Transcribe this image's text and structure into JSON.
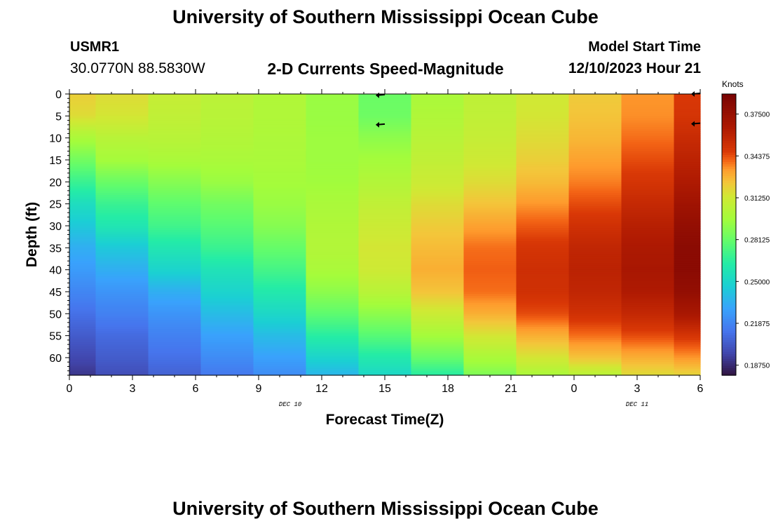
{
  "header": {
    "title": "University of Southern Mississippi Ocean Cube",
    "station_id": "USMR1",
    "coords": "30.0770N  88.5830W",
    "subtitle": "2-D Currents Speed-Magnitude",
    "model_start_label": "Model Start Time",
    "model_start_value": "12/10/2023 Hour 21"
  },
  "footer": {
    "title": "University of Southern Mississippi Ocean Cube"
  },
  "chart_data": {
    "type": "heatmap",
    "title": "2-D Currents Speed-Magnitude",
    "xlabel": "Forecast Time(Z)",
    "ylabel": "Depth (ft)",
    "x_tick_labels": [
      "0",
      "3",
      "6",
      "9",
      "12",
      "15",
      "18",
      "21",
      "0",
      "3",
      "6"
    ],
    "x_range_hours": [
      0,
      30
    ],
    "date_labels": [
      {
        "label": "DEC 10",
        "hour": 10.5
      },
      {
        "label": "DEC 11",
        "hour": 27
      }
    ],
    "y_tick_labels": [
      "0",
      "5",
      "10",
      "15",
      "20",
      "25",
      "30",
      "35",
      "40",
      "45",
      "50",
      "55",
      "60"
    ],
    "ylim": [
      0,
      64
    ],
    "colorbar": {
      "label": "Knots",
      "range": [
        0.18,
        0.39
      ],
      "tick_labels": [
        "0.37500",
        "0.34375",
        "0.31250",
        "0.28125",
        "0.25000",
        "0.21875",
        "0.18750"
      ],
      "tick_values": [
        0.375,
        0.34375,
        0.3125,
        0.28125,
        0.25,
        0.21875,
        0.1875
      ]
    },
    "depth_profile_ft": [
      0,
      5,
      10,
      15,
      20,
      25,
      30,
      35,
      40,
      45,
      50,
      55,
      60,
      64
    ],
    "columns": [
      {
        "hour": 0,
        "speeds": [
          0.322,
          0.318,
          0.3,
          0.285,
          0.27,
          0.255,
          0.245,
          0.235,
          0.228,
          0.22,
          0.212,
          0.205,
          0.198,
          0.192
        ]
      },
      {
        "hour": 2.5,
        "speeds": [
          0.318,
          0.315,
          0.305,
          0.298,
          0.283,
          0.27,
          0.26,
          0.245,
          0.235,
          0.225,
          0.218,
          0.21,
          0.205,
          0.2
        ]
      },
      {
        "hour": 5,
        "speeds": [
          0.31,
          0.308,
          0.305,
          0.3,
          0.29,
          0.28,
          0.272,
          0.26,
          0.25,
          0.235,
          0.225,
          0.218,
          0.212,
          0.207
        ]
      },
      {
        "hour": 7.5,
        "speeds": [
          0.306,
          0.305,
          0.303,
          0.3,
          0.295,
          0.285,
          0.278,
          0.27,
          0.258,
          0.25,
          0.24,
          0.23,
          0.222,
          0.215
        ]
      },
      {
        "hour": 10,
        "speeds": [
          0.302,
          0.302,
          0.301,
          0.3,
          0.298,
          0.295,
          0.29,
          0.282,
          0.273,
          0.262,
          0.252,
          0.24,
          0.23,
          0.222
        ]
      },
      {
        "hour": 12.5,
        "speeds": [
          0.295,
          0.295,
          0.296,
          0.296,
          0.297,
          0.3,
          0.302,
          0.303,
          0.3,
          0.292,
          0.28,
          0.265,
          0.25,
          0.238
        ]
      },
      {
        "hour": 15,
        "speeds": [
          0.283,
          0.284,
          0.292,
          0.298,
          0.303,
          0.308,
          0.312,
          0.315,
          0.313,
          0.305,
          0.292,
          0.278,
          0.262,
          0.252
        ]
      },
      {
        "hour": 17.5,
        "speeds": [
          0.3,
          0.302,
          0.305,
          0.308,
          0.312,
          0.318,
          0.323,
          0.327,
          0.33,
          0.325,
          0.312,
          0.298,
          0.282,
          0.265
        ]
      },
      {
        "hour": 20,
        "speeds": [
          0.307,
          0.308,
          0.31,
          0.313,
          0.318,
          0.325,
          0.333,
          0.34,
          0.342,
          0.34,
          0.33,
          0.315,
          0.3,
          0.288
        ]
      },
      {
        "hour": 22.5,
        "speeds": [
          0.314,
          0.315,
          0.318,
          0.322,
          0.327,
          0.335,
          0.343,
          0.35,
          0.353,
          0.352,
          0.345,
          0.33,
          0.315,
          0.3
        ]
      },
      {
        "hour": 25,
        "speeds": [
          0.323,
          0.325,
          0.328,
          0.333,
          0.338,
          0.345,
          0.352,
          0.358,
          0.36,
          0.358,
          0.352,
          0.34,
          0.325,
          0.305
        ]
      },
      {
        "hour": 27.5,
        "speeds": [
          0.335,
          0.336,
          0.34,
          0.345,
          0.35,
          0.356,
          0.362,
          0.366,
          0.368,
          0.365,
          0.357,
          0.345,
          0.33,
          0.318
        ]
      },
      {
        "hour": 30,
        "speeds": [
          0.348,
          0.35,
          0.355,
          0.36,
          0.365,
          0.372,
          0.378,
          0.382,
          0.382,
          0.378,
          0.368,
          0.35,
          0.335,
          0.32
        ]
      }
    ],
    "vectors": [
      {
        "hour": 14.8,
        "depth_ft": 0.3,
        "direction": "west"
      },
      {
        "hour": 14.8,
        "depth_ft": 7,
        "direction": "west"
      },
      {
        "hour": 29.8,
        "depth_ft": 0,
        "direction": "west"
      },
      {
        "hour": 29.8,
        "depth_ft": 6.8,
        "direction": "west"
      }
    ]
  }
}
